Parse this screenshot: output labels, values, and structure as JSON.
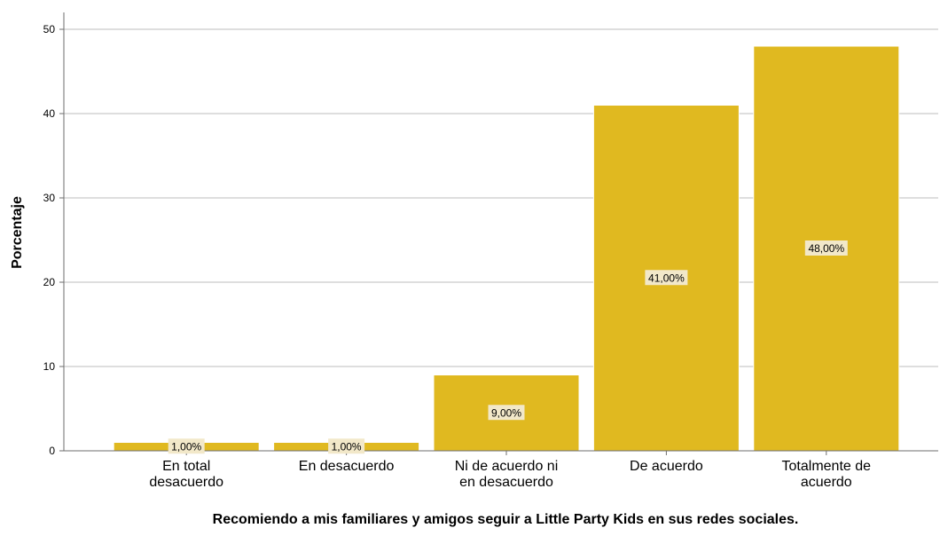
{
  "chart_data": {
    "type": "bar",
    "categories": [
      [
        "En total",
        "desacuerdo"
      ],
      [
        "En desacuerdo"
      ],
      [
        "Ni de acuerdo ni",
        "en desacuerdo"
      ],
      [
        "De acuerdo"
      ],
      [
        "Totalmente de",
        "acuerdo"
      ]
    ],
    "values": [
      1,
      1,
      9,
      41,
      48
    ],
    "data_labels": [
      "1,00%",
      "1,00%",
      "9,00%",
      "41,00%",
      "48,00%"
    ],
    "title": "",
    "xlabel": "Recomiendo a mis familiares y amigos seguir a Little Party Kids en sus redes sociales.",
    "ylabel": "Porcentaje",
    "ylim": [
      0,
      52
    ],
    "yticks": [
      0,
      10,
      20,
      30,
      40,
      50
    ],
    "grid": true,
    "colors": {
      "bar": "#E0B920",
      "bar_edge": "#ffffff",
      "grid": "#BDBDBD",
      "axis": "#6E6E6E",
      "label_bg": "#F2E8C9",
      "text": "#000000"
    }
  }
}
